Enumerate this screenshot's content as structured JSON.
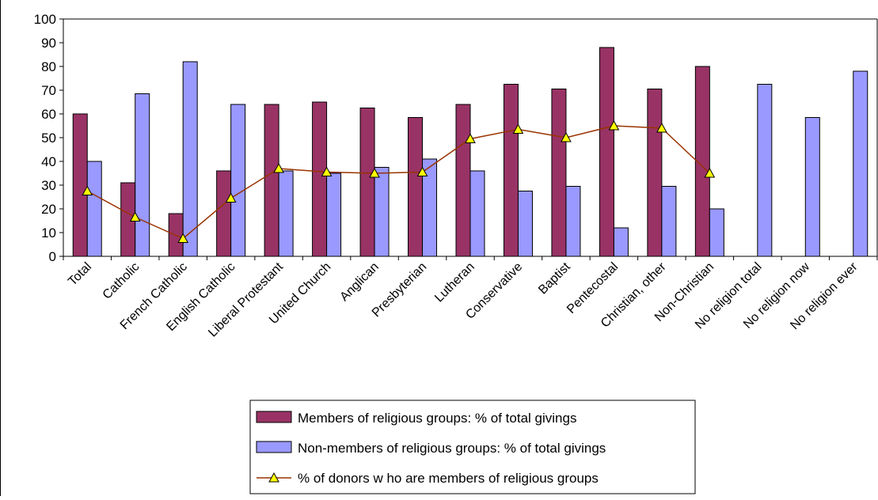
{
  "chart_data": {
    "type": "bar",
    "categories": [
      "Total",
      "Catholic",
      "French Catholic",
      "English Catholic",
      "Liberal Protestant",
      "United Church",
      "Anglican",
      "Presbyterian",
      "Lutheran",
      "Conservative",
      "Baptist",
      "Pentecostal",
      "Christian, other",
      "Non-Christian",
      "No religion total",
      "No religion now",
      "No religion ever"
    ],
    "series": [
      {
        "name": "Members of religious groups: % of total givings",
        "type": "bar",
        "color": "#993366",
        "values": [
          60,
          31,
          18,
          36,
          64,
          65,
          62.5,
          58.5,
          64,
          72.5,
          70.5,
          88,
          70.5,
          80,
          null,
          null,
          null
        ]
      },
      {
        "name": "Non-members of religious groups: % of total givings",
        "type": "bar",
        "color": "#9999FF",
        "values": [
          40,
          68.5,
          82,
          64,
          36,
          35,
          37.5,
          41,
          36,
          27.5,
          29.5,
          12,
          29.5,
          20,
          72.5,
          58.5,
          78
        ]
      },
      {
        "name": "% of donors w ho are members of religious groups",
        "type": "line",
        "color": "#993300",
        "marker_color": "#FFFF00",
        "values": [
          27.5,
          16.5,
          7.5,
          24.5,
          37,
          35.5,
          35,
          35.5,
          49.5,
          53.5,
          50,
          55,
          54,
          35,
          null,
          null,
          null
        ]
      }
    ],
    "ylim": [
      0,
      100
    ],
    "yticks": [
      "0",
      "10",
      "20",
      "30",
      "40",
      "50",
      "60",
      "70",
      "80",
      "90",
      "100"
    ],
    "grid": false,
    "legend_position": "bottom",
    "title": "",
    "xlabel": "",
    "ylabel": ""
  }
}
